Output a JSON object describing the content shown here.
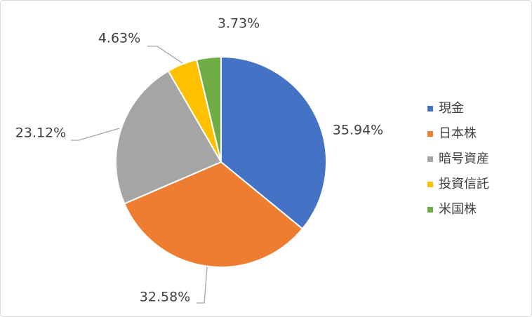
{
  "chart_data": {
    "type": "pie",
    "categories": [
      "現金",
      "日本株",
      "暗号資産",
      "投資信託",
      "米国株"
    ],
    "values": [
      35.94,
      32.58,
      23.12,
      4.63,
      3.73
    ],
    "value_labels": [
      "35.94%",
      "32.58%",
      "23.12%",
      "4.63%",
      "3.73%"
    ],
    "colors": [
      "#4472c4",
      "#ed7d31",
      "#a5a5a5",
      "#ffc000",
      "#70ad47"
    ],
    "legend": "right"
  }
}
